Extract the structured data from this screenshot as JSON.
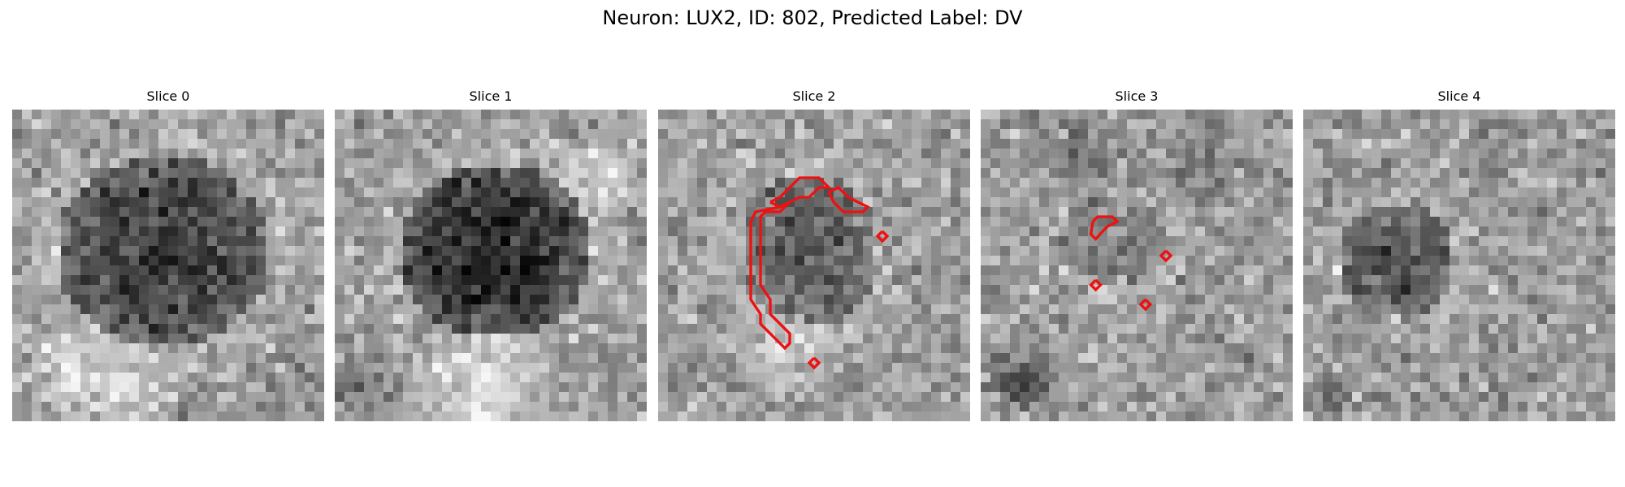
{
  "title": "Neuron: LUX2, ID: 802, Predicted Label: DV",
  "colors": {
    "contour": "#ee1111",
    "background": "#ffffff"
  },
  "slices": [
    {
      "label": "Slice 0",
      "blob_intensity": 0.72,
      "contours": []
    },
    {
      "label": "Slice 1",
      "blob_intensity": 0.85,
      "contours": []
    },
    {
      "label": "Slice 2",
      "blob_intensity": 0.45,
      "contours": [
        "arc-contour",
        "cap-contour",
        "small-contour-a",
        "small-contour-b"
      ]
    },
    {
      "label": "Slice 3",
      "blob_intensity": 0.2,
      "contours": [
        "small-contour-a",
        "small-contour-b",
        "small-contour-c",
        "small-contour-d"
      ]
    },
    {
      "label": "Slice 4",
      "blob_intensity": 0.55,
      "contours": []
    }
  ]
}
